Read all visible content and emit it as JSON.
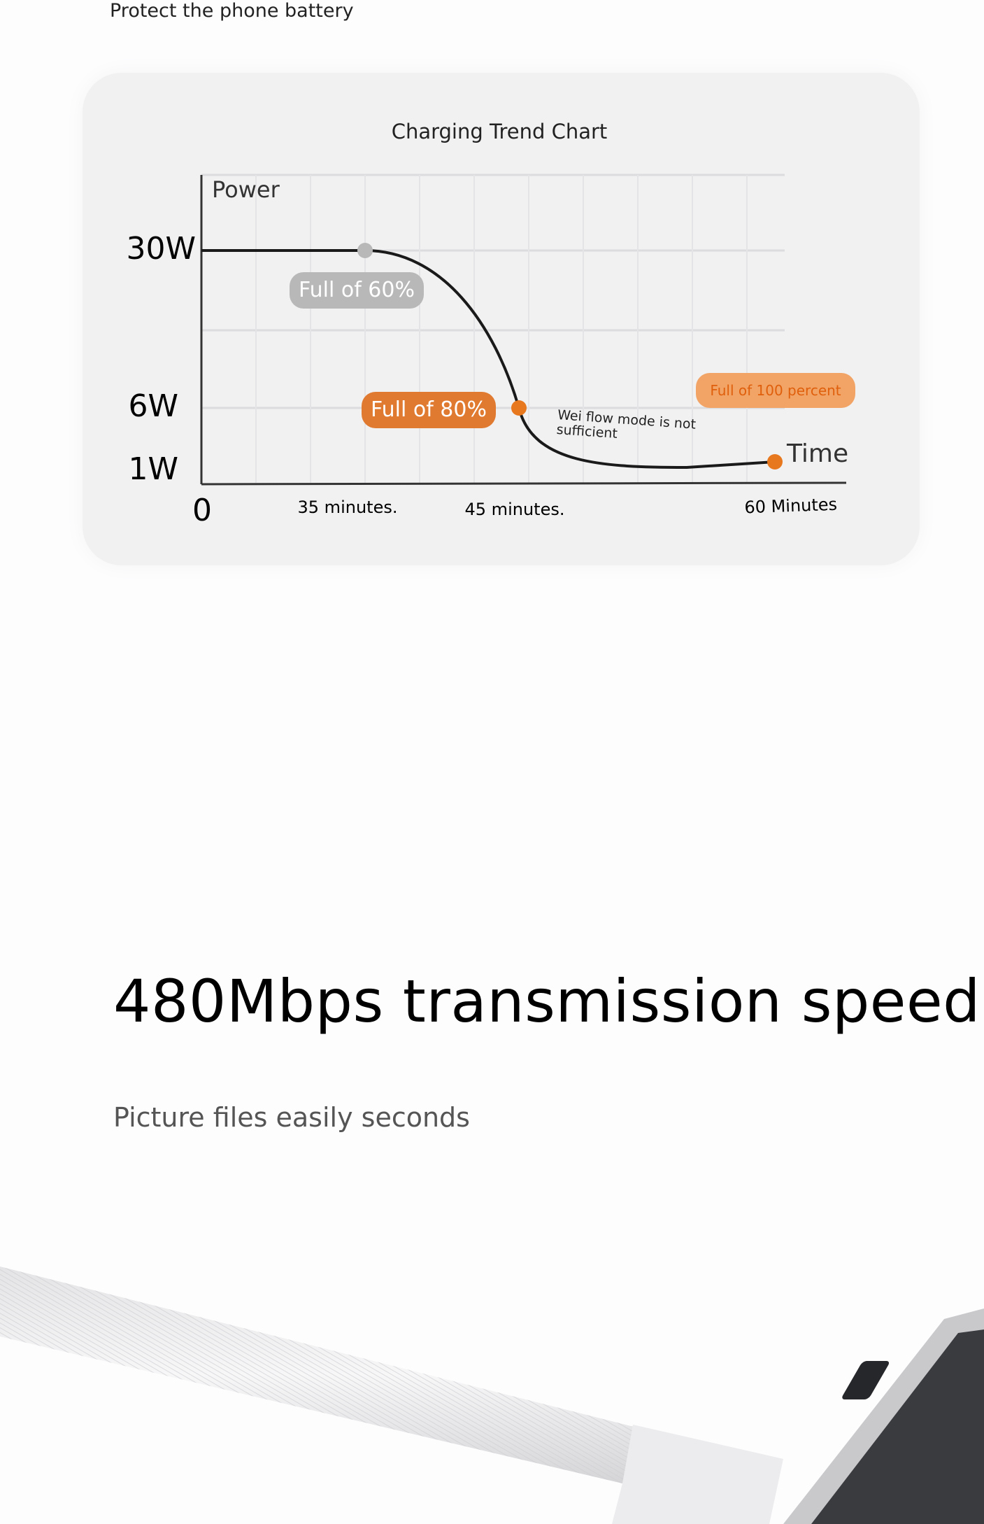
{
  "header": {
    "text": "Protect the phone battery"
  },
  "chart_data": {
    "type": "line",
    "title": "Charging Trend Chart",
    "ylabel": "Power",
    "xlabel": "Time",
    "y_ticks": [
      "30W",
      "6W",
      "1W"
    ],
    "x_ticks": [
      "0",
      "35 minutes.",
      "45 minutes.",
      "60 Minutes"
    ],
    "x": [
      0,
      35,
      45,
      60
    ],
    "y": [
      30,
      30,
      6,
      1
    ],
    "x_unit": "minutes",
    "y_unit": "W",
    "grid": true,
    "annotations": [
      {
        "text": "Full of 60%",
        "at_minutes": 35,
        "color": "#b8b8b8"
      },
      {
        "text": "Full of 80%",
        "at_minutes": 45,
        "color": "#e07a30"
      },
      {
        "text": "Full of 100 percent",
        "at_minutes": 60,
        "color": "#f1a466"
      },
      {
        "text": "Wei flow mode is not sufficient"
      }
    ],
    "colors": {
      "line": "#1a1a1a",
      "marker_60": "#b8b8b8",
      "marker_orange": "#e8781e"
    }
  },
  "section": {
    "heading": "480Mbps transmission speed",
    "subheading": "Picture files easily seconds"
  }
}
